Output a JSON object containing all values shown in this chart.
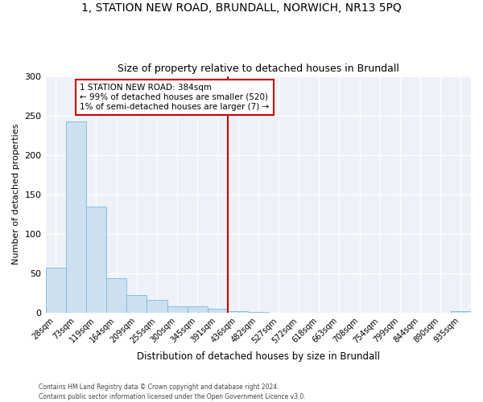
{
  "title_line1": "1, STATION NEW ROAD, BRUNDALL, NORWICH, NR13 5PQ",
  "title_line2": "Size of property relative to detached houses in Brundall",
  "xlabel": "Distribution of detached houses by size in Brundall",
  "ylabel": "Number of detached properties",
  "bin_labels": [
    "28sqm",
    "73sqm",
    "119sqm",
    "164sqm",
    "209sqm",
    "255sqm",
    "300sqm",
    "345sqm",
    "391sqm",
    "436sqm",
    "482sqm",
    "527sqm",
    "572sqm",
    "618sqm",
    "663sqm",
    "708sqm",
    "754sqm",
    "799sqm",
    "844sqm",
    "890sqm",
    "935sqm"
  ],
  "bar_heights": [
    57,
    242,
    134,
    44,
    22,
    16,
    8,
    8,
    5,
    2,
    1,
    0,
    0,
    0,
    0,
    0,
    0,
    0,
    0,
    0,
    2
  ],
  "bar_color": "#cce0f0",
  "bar_edge_color": "#7ab8d9",
  "vline_index": 8,
  "vline_color": "#cc0000",
  "annotation_text": "1 STATION NEW ROAD: 384sqm\n← 99% of detached houses are smaller (520)\n1% of semi-detached houses are larger (7) →",
  "annotation_box_edge_color": "#cc0000",
  "ylim": [
    0,
    300
  ],
  "yticks": [
    0,
    50,
    100,
    150,
    200,
    250,
    300
  ],
  "bg_color": "#eef2f8",
  "footer_line1": "Contains HM Land Registry data © Crown copyright and database right 2024.",
  "footer_line2": "Contains public sector information licensed under the Open Government Licence v3.0."
}
